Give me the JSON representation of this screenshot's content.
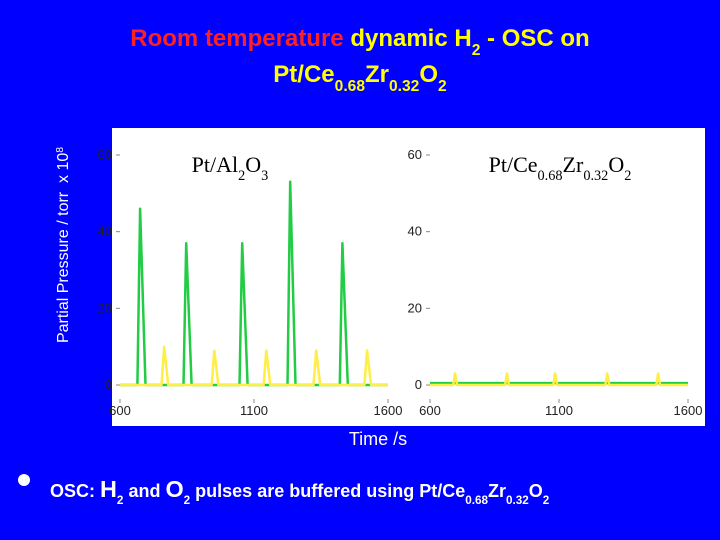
{
  "slide": {
    "title_lines": [
      [
        {
          "text": "Room temperature",
          "color": "#ff2020"
        },
        {
          "text": " dynamic H",
          "color": "#ffff00"
        },
        {
          "text": "2",
          "color": "#ffff00",
          "style": "sub"
        },
        {
          "text": " - OSC on",
          "color": "#ffff00"
        }
      ],
      [
        {
          "text": "Pt/Ce",
          "color": "#ffff00"
        },
        {
          "text": "0.68",
          "color": "#ffff00",
          "style": "sub"
        },
        {
          "text": "Zr",
          "color": "#ffff00"
        },
        {
          "text": "0.32",
          "color": "#ffff00",
          "style": "sub"
        },
        {
          "text": "O",
          "color": "#ffff00"
        },
        {
          "text": "2",
          "color": "#ffff00",
          "style": "sub"
        }
      ]
    ],
    "y_label": [
      {
        "text": "Partial Pressure / torr  x 10"
      },
      {
        "text": "8",
        "style": "sup"
      }
    ],
    "x_label": "Time /s",
    "bullet": [
      {
        "text": "OSC: "
      },
      {
        "text": "H",
        "style": "big"
      },
      {
        "text": "2",
        "style": "sub"
      },
      {
        "text": " and "
      },
      {
        "text": "O",
        "style": "big"
      },
      {
        "text": "2",
        "style": "sub"
      },
      {
        "text": " pulses are buffered using Pt/Ce"
      },
      {
        "text": "0.68",
        "style": "sub"
      },
      {
        "text": "Zr"
      },
      {
        "text": "0.32",
        "style": "sub"
      },
      {
        "text": "O"
      },
      {
        "text": "2",
        "style": "sub"
      }
    ]
  },
  "chart_data": [
    {
      "type": "line",
      "title": [
        {
          "text": "Pt/Al"
        },
        {
          "text": "2",
          "style": "sub"
        },
        {
          "text": "O"
        },
        {
          "text": "3",
          "style": "sub"
        }
      ],
      "xlim": [
        600,
        1600
      ],
      "ylim": [
        0,
        60
      ],
      "xticks": [
        600,
        1100,
        1600
      ],
      "yticks": [
        0,
        20,
        40,
        60
      ],
      "series": [
        {
          "color": "#22cc44",
          "x": [
            600,
            665,
            675,
            695,
            837,
            847,
            867,
            1046,
            1056,
            1076,
            1225,
            1235,
            1255,
            1420,
            1430,
            1450,
            1600
          ],
          "values": [
            0,
            0,
            46,
            0,
            0,
            37,
            0,
            0,
            37,
            0,
            0,
            53,
            0,
            0,
            37,
            0,
            0
          ]
        },
        {
          "color": "#ffee44",
          "x": [
            600,
            755,
            765,
            780,
            942,
            952,
            967,
            1136,
            1146,
            1161,
            1322,
            1332,
            1347,
            1512,
            1522,
            1537,
            1600
          ],
          "values": [
            0,
            0,
            10,
            0,
            0,
            9,
            0,
            0,
            9,
            0,
            0,
            9,
            0,
            0,
            9,
            0,
            0
          ]
        }
      ]
    },
    {
      "type": "line",
      "title": [
        {
          "text": "Pt/Ce"
        },
        {
          "text": "0.68",
          "style": "sub"
        },
        {
          "text": "Zr"
        },
        {
          "text": "0.32",
          "style": "sub"
        },
        {
          "text": "O"
        },
        {
          "text": "2",
          "style": "sub"
        }
      ],
      "xlim": [
        600,
        1600
      ],
      "ylim": [
        0,
        60
      ],
      "xticks": [
        600,
        1100,
        1600
      ],
      "yticks": [
        0,
        20,
        40,
        60
      ],
      "series": [
        {
          "color": "#22cc44",
          "x": [
            600,
            1600
          ],
          "values": [
            0.5,
            0.5
          ]
        },
        {
          "color": "#ffee44",
          "x": [
            600,
            690,
            697,
            705,
            891,
            898,
            906,
            1078,
            1085,
            1093,
            1280,
            1287,
            1295,
            1477,
            1484,
            1492,
            1600
          ],
          "values": [
            0,
            0,
            3,
            0,
            0,
            3,
            0,
            0,
            3,
            0,
            0,
            3,
            0,
            0,
            3,
            0,
            0
          ]
        }
      ]
    }
  ]
}
